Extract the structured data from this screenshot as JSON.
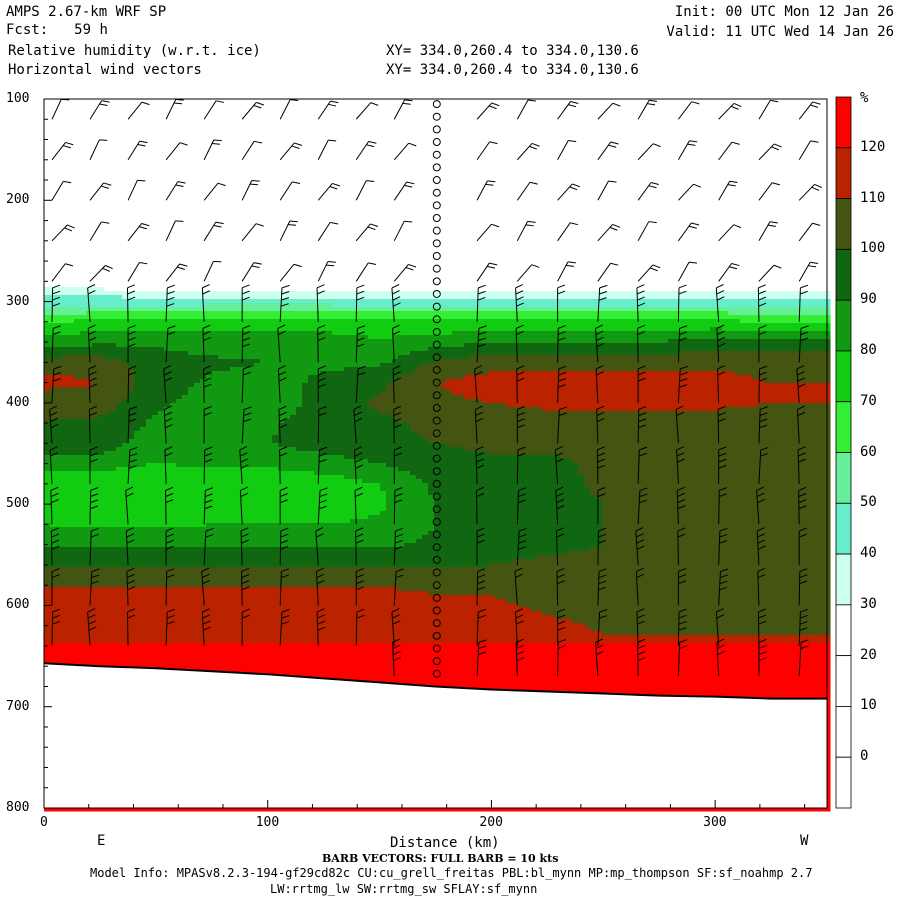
{
  "header": {
    "model": "AMPS 2.67-km WRF SP",
    "fcst_label": "Fcst:",
    "fcst_hours": "59 h",
    "field1": "Relative humidity (w.r.t. ice)",
    "field2": "Horizontal wind vectors",
    "init": "Init: 00 UTC Mon 12 Jan 26",
    "valid": "Valid: 11 UTC Wed 14 Jan 26",
    "xy1": "XY= 334.0,260.4 to 334.0,130.6",
    "xy2": "XY= 334.0,260.4 to 334.0,130.6"
  },
  "footer": {
    "barb_note": "BARB VECTORS: FULL BARB = 10 kts",
    "model_info": "Model Info: MPASv8.2.3-194-gf29cd82c CU:cu_grell_freitas PBL:bl_mynn MP:mp_thompson SF:sf_noahmp 2.7",
    "model_info2": "LW:rrtmg_lw SW:rrtmg_sw SFLAY:sf_mynn"
  },
  "chart_data": {
    "type": "heatmap",
    "xlabel": "Distance (km)",
    "xlim": [
      0,
      350
    ],
    "xticks": [
      0,
      100,
      200,
      300
    ],
    "x_end_labels": {
      "left": "E",
      "right": "W"
    },
    "ylim": [
      100,
      800
    ],
    "yticks": [
      100,
      200,
      300,
      400,
      500,
      600,
      700,
      800
    ],
    "colorbar": {
      "unit": "%",
      "levels": [
        -10,
        0,
        10,
        20,
        30,
        40,
        50,
        60,
        70,
        80,
        90,
        100,
        110,
        120,
        130
      ],
      "labels": [
        120,
        110,
        100,
        90,
        80,
        70,
        60,
        50,
        40,
        30,
        20,
        10,
        0
      ],
      "colors": [
        "#ffffff",
        "#ffffff",
        "#ffffff",
        "#ffffff",
        "#ccffee",
        "#66eecc",
        "#66ee99",
        "#33ee33",
        "#11cc11",
        "#119911",
        "#116611",
        "#445511",
        "#bb2200",
        "#ff0000"
      ]
    },
    "terrain_pressure": [
      [
        0,
        657
      ],
      [
        25,
        660
      ],
      [
        50,
        662
      ],
      [
        75,
        665
      ],
      [
        100,
        668
      ],
      [
        125,
        672
      ],
      [
        150,
        676
      ],
      [
        175,
        680
      ],
      [
        200,
        683
      ],
      [
        225,
        685
      ],
      [
        250,
        687
      ],
      [
        275,
        689
      ],
      [
        300,
        690
      ],
      [
        325,
        692
      ],
      [
        350,
        692
      ]
    ],
    "rh_profiles": {
      "pressure": [
        100,
        260,
        280,
        290,
        300,
        320,
        340,
        360,
        380,
        400,
        420,
        440,
        460,
        480,
        500,
        520,
        540,
        560,
        575,
        590,
        610,
        630,
        650,
        670,
        690
      ],
      "x": [
        0,
        25,
        50,
        75,
        100,
        125,
        150,
        175,
        200,
        225,
        250,
        275,
        300,
        325,
        350
      ],
      "values": [
        [
          5,
          5,
          5,
          25,
          35,
          60,
          75,
          95,
          104,
          92,
          90,
          88,
          75,
          62,
          68,
          70,
          78,
          88,
          96,
          104,
          106,
          100,
          124,
          118,
          118
        ],
        [
          5,
          5,
          5,
          25,
          35,
          62,
          78,
          95,
          100,
          95,
          88,
          85,
          75,
          60,
          60,
          68,
          78,
          88,
          96,
          104,
          106,
          100,
          124,
          118,
          118
        ],
        [
          5,
          5,
          5,
          22,
          35,
          62,
          78,
          85,
          85,
          82,
          78,
          75,
          70,
          60,
          62,
          68,
          78,
          88,
          96,
          104,
          106,
          104,
          124,
          118,
          118
        ],
        [
          5,
          5,
          5,
          22,
          35,
          65,
          75,
          82,
          78,
          76,
          78,
          80,
          72,
          62,
          65,
          70,
          78,
          88,
          96,
          104,
          106,
          104,
          124,
          118,
          118
        ],
        [
          5,
          5,
          5,
          22,
          35,
          65,
          75,
          80,
          76,
          72,
          78,
          80,
          72,
          62,
          65,
          70,
          78,
          88,
          96,
          104,
          106,
          104,
          124,
          118,
          118
        ],
        [
          5,
          5,
          5,
          22,
          35,
          65,
          75,
          78,
          82,
          85,
          86,
          85,
          75,
          65,
          62,
          70,
          78,
          88,
          96,
          104,
          106,
          104,
          124,
          118,
          118
        ],
        [
          5,
          5,
          5,
          22,
          35,
          62,
          72,
          78,
          88,
          92,
          88,
          88,
          80,
          70,
          68,
          72,
          78,
          88,
          96,
          104,
          104,
          104,
          124,
          118,
          118
        ],
        [
          5,
          5,
          5,
          22,
          35,
          62,
          75,
          92,
          100,
          98,
          92,
          90,
          86,
          82,
          80,
          80,
          82,
          88,
          96,
          100,
          104,
          104,
          124,
          118,
          118
        ],
        [
          5,
          5,
          5,
          22,
          35,
          62,
          80,
          96,
          104,
          100,
          96,
          92,
          88,
          84,
          80,
          82,
          86,
          90,
          94,
          100,
          104,
          104,
          124,
          118,
          118
        ],
        [
          5,
          5,
          5,
          22,
          35,
          62,
          80,
          96,
          104,
          102,
          96,
          92,
          88,
          86,
          86,
          86,
          88,
          92,
          94,
          96,
          100,
          104,
          124,
          118,
          118
        ],
        [
          5,
          5,
          5,
          22,
          35,
          62,
          80,
          96,
          104,
          102,
          96,
          92,
          92,
          92,
          90,
          90,
          90,
          92,
          94,
          96,
          98,
          100,
          124,
          118,
          118
        ],
        [
          5,
          5,
          5,
          22,
          35,
          62,
          80,
          96,
          104,
          102,
          96,
          92,
          92,
          92,
          90,
          92,
          92,
          92,
          94,
          96,
          98,
          100,
          124,
          118,
          118
        ],
        [
          5,
          5,
          5,
          22,
          35,
          62,
          85,
          98,
          104,
          102,
          96,
          92,
          92,
          92,
          92,
          92,
          92,
          94,
          94,
          96,
          98,
          100,
          124,
          118,
          118
        ],
        [
          5,
          5,
          5,
          22,
          35,
          60,
          85,
          96,
          100,
          100,
          96,
          92,
          90,
          90,
          92,
          92,
          92,
          94,
          94,
          96,
          98,
          100,
          124,
          118,
          118
        ],
        [
          5,
          5,
          5,
          22,
          35,
          60,
          85,
          96,
          100,
          100,
          96,
          92,
          90,
          90,
          92,
          92,
          92,
          94,
          94,
          96,
          98,
          100,
          124,
          118,
          118
        ]
      ]
    },
    "wind_barbs": {
      "x": [
        0,
        17,
        34,
        51,
        68,
        85,
        102,
        119,
        136,
        153,
        172,
        190,
        208,
        226,
        244,
        262,
        280,
        298,
        316,
        334
      ],
      "pressure": [
        120,
        160,
        200,
        240,
        280,
        320,
        360,
        400,
        440,
        480,
        520,
        560,
        600,
        640,
        670
      ],
      "calm_column_km": 172
    }
  }
}
